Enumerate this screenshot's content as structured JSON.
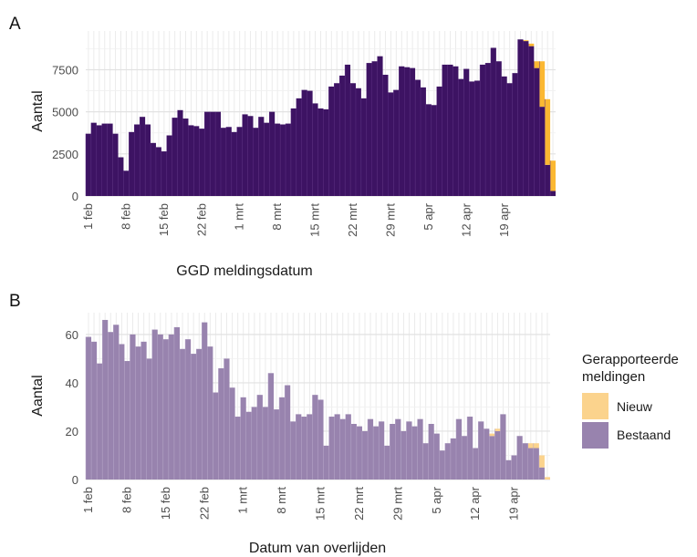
{
  "colors": {
    "panel_a_bestaand": "#3d1363",
    "nieuw": "#fbb832",
    "panel_b_bestaand": "#9883ae",
    "panel_b_nieuw": "#fbd38d",
    "grid": "#ebebeb"
  },
  "legend": {
    "title_line1": "Gerapporteerde",
    "title_line2": "meldingen",
    "items": [
      {
        "label": "Nieuw",
        "color": "#fbd38d"
      },
      {
        "label": "Bestaand",
        "color": "#9883ae"
      }
    ],
    "placement": "right"
  },
  "chart_data": [
    {
      "type": "bar",
      "stacked": true,
      "panel_letter": "A",
      "xlabel": "GGD meldingsdatum",
      "ylabel": "Aantal",
      "ylim": [
        0,
        9800
      ],
      "yticks": [
        0,
        2500,
        5000,
        7500
      ],
      "xtick_labels": [
        "1 feb",
        "8 feb",
        "15 feb",
        "22 feb",
        "1 mrt",
        "8 mrt",
        "15 mrt",
        "22 mrt",
        "29 mrt",
        "5 apr",
        "12 apr",
        "19 apr"
      ],
      "xtick_index": [
        0,
        7,
        14,
        21,
        28,
        35,
        42,
        49,
        56,
        63,
        70,
        77
      ],
      "grid": true,
      "series": [
        {
          "name": "Bestaand",
          "values": [
            3700,
            4350,
            4200,
            4300,
            4300,
            3700,
            2300,
            1500,
            3800,
            4250,
            4700,
            4250,
            3150,
            2900,
            2650,
            3600,
            4650,
            5100,
            4600,
            4200,
            4150,
            4000,
            5000,
            5000,
            5000,
            4050,
            4100,
            3800,
            4100,
            4850,
            4750,
            4050,
            4700,
            4350,
            5000,
            4300,
            4250,
            4300,
            5200,
            5800,
            6300,
            6250,
            5500,
            5200,
            5150,
            6500,
            6700,
            7150,
            7800,
            6700,
            6400,
            5800,
            7900,
            8000,
            8300,
            7200,
            6150,
            6300,
            7700,
            7650,
            7600,
            6900,
            6450,
            5450,
            5400,
            6500,
            7800,
            7800,
            7700,
            6950,
            7550,
            6800,
            6850,
            7800,
            7900,
            8800,
            8000,
            7100,
            6700,
            7300,
            9300,
            9200,
            8900,
            7600,
            5300,
            1850,
            300
          ]
        },
        {
          "name": "Nieuw",
          "values": [
            0,
            0,
            0,
            0,
            0,
            0,
            0,
            0,
            0,
            0,
            0,
            0,
            0,
            0,
            0,
            0,
            0,
            0,
            0,
            0,
            0,
            0,
            0,
            0,
            0,
            0,
            0,
            0,
            0,
            0,
            0,
            0,
            0,
            0,
            0,
            0,
            0,
            0,
            0,
            0,
            0,
            0,
            0,
            0,
            0,
            0,
            0,
            0,
            0,
            0,
            0,
            0,
            0,
            0,
            0,
            0,
            0,
            0,
            0,
            0,
            0,
            0,
            0,
            0,
            0,
            0,
            0,
            0,
            0,
            0,
            0,
            0,
            0,
            0,
            0,
            0,
            0,
            0,
            0,
            0,
            0,
            50,
            150,
            400,
            2700,
            3900,
            1800
          ]
        }
      ]
    },
    {
      "type": "bar",
      "stacked": true,
      "panel_letter": "B",
      "xlabel": "Datum van overlijden",
      "ylabel": "Aantal",
      "ylim": [
        0,
        69
      ],
      "yticks": [
        0,
        20,
        40,
        60
      ],
      "xtick_labels": [
        "1 feb",
        "8 feb",
        "15 feb",
        "22 feb",
        "1 mrt",
        "8 mrt",
        "15 mrt",
        "22 mrt",
        "29 mrt",
        "5 apr",
        "12 apr",
        "19 apr"
      ],
      "xtick_index": [
        0,
        7,
        14,
        21,
        28,
        35,
        42,
        49,
        56,
        63,
        70,
        77
      ],
      "grid": true,
      "series": [
        {
          "name": "Bestaand",
          "values": [
            59,
            57,
            48,
            66,
            61,
            64,
            56,
            49,
            60,
            55,
            57,
            50,
            62,
            60,
            58,
            60,
            63,
            54,
            58,
            52,
            54,
            65,
            55,
            36,
            46,
            50,
            38,
            26,
            34,
            28,
            30,
            35,
            30,
            44,
            29,
            34,
            39,
            24,
            27,
            26,
            27,
            35,
            33,
            14,
            26,
            27,
            25,
            27,
            23,
            22,
            20,
            25,
            22,
            24,
            14,
            23,
            25,
            20,
            24,
            22,
            25,
            15,
            23,
            19,
            12,
            15,
            17,
            25,
            18,
            26,
            13,
            24,
            21,
            18,
            20,
            27,
            8,
            10,
            18,
            15,
            13,
            13,
            5,
            0
          ]
        },
        {
          "name": "Nieuw",
          "values": [
            0,
            0,
            0,
            0,
            0,
            0,
            0,
            0,
            0,
            0,
            0,
            0,
            0,
            0,
            0,
            0,
            0,
            0,
            0,
            0,
            0,
            0,
            0,
            0,
            0,
            0,
            0,
            0,
            0,
            0,
            0,
            0,
            0,
            0,
            0,
            0,
            0,
            0,
            0,
            0,
            0,
            0,
            0,
            0,
            0,
            0,
            0,
            0,
            0,
            0,
            0,
            0,
            0,
            0,
            0,
            0,
            0,
            0,
            0,
            0,
            0,
            0,
            0,
            0,
            0,
            0,
            0,
            0,
            0,
            0,
            0,
            0,
            0,
            1,
            1,
            0,
            0,
            0,
            0,
            0,
            2,
            2,
            5,
            1
          ]
        }
      ]
    }
  ]
}
